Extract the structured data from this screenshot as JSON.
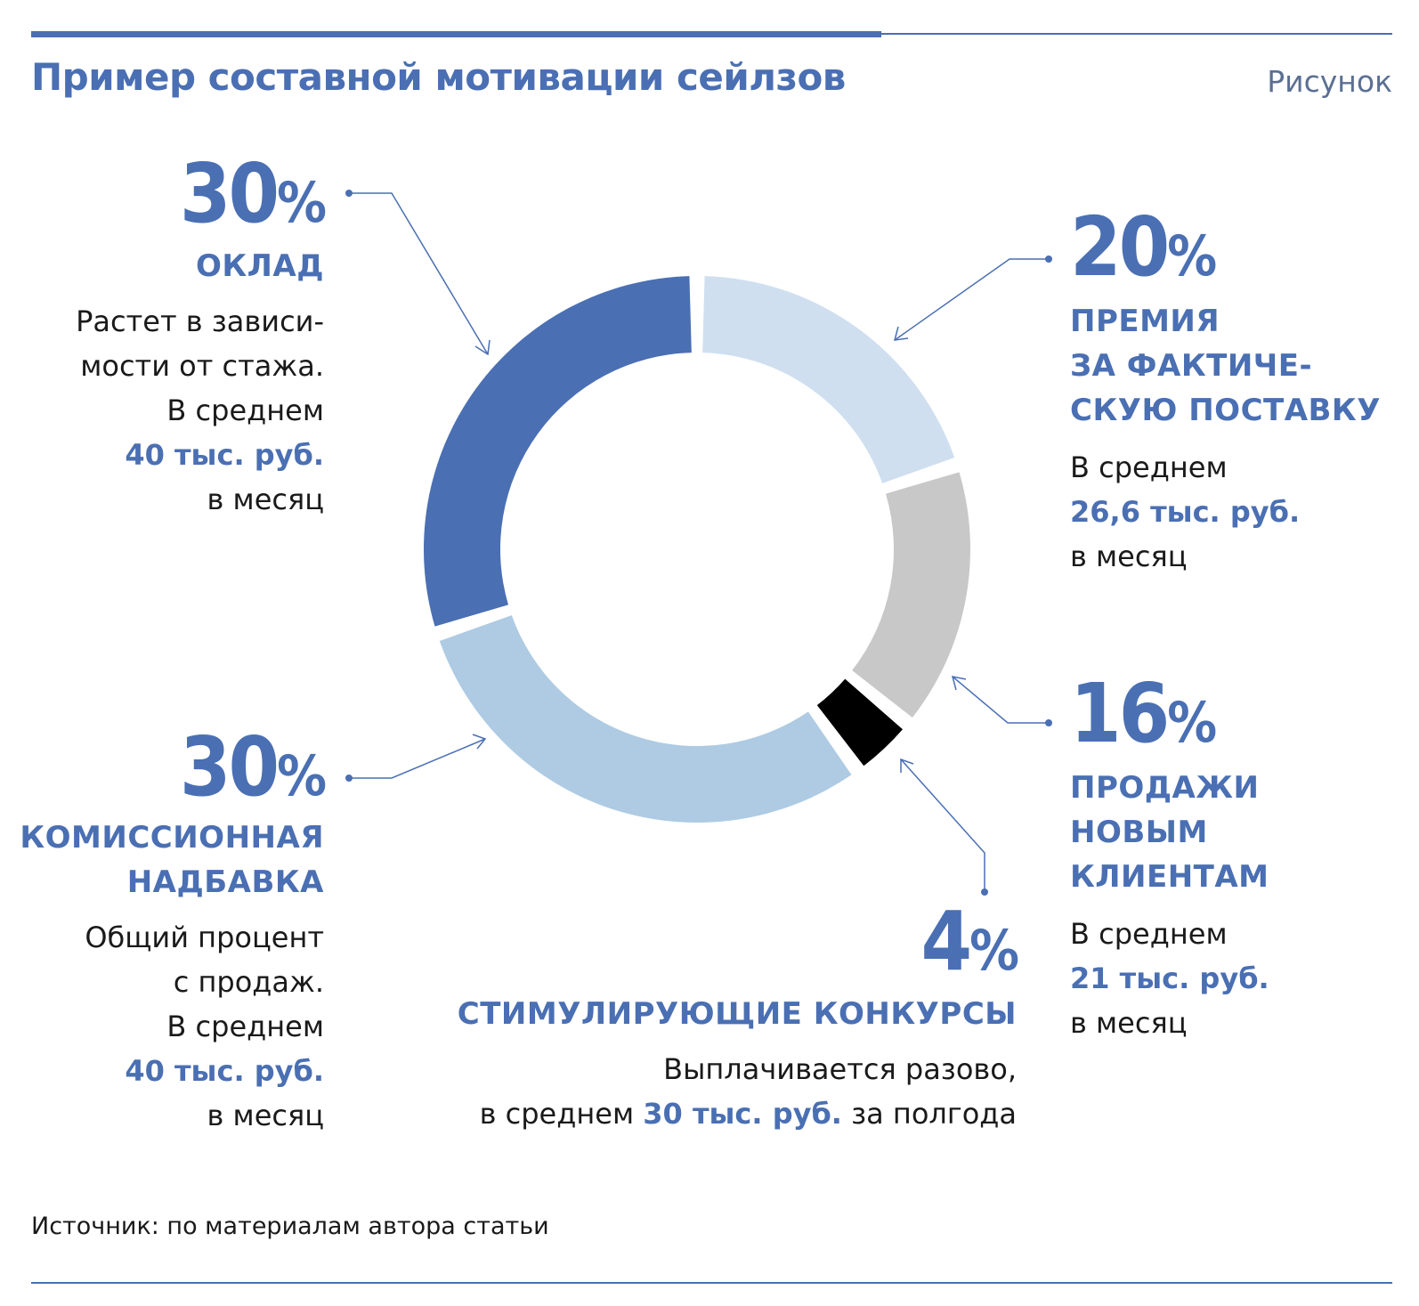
{
  "header": {
    "title": "Пример составной мотивации сейлзов",
    "figure_label": "Рисунок"
  },
  "footer": {
    "source": "Источник: по материалам автора статьи"
  },
  "chart_data": {
    "type": "pie",
    "style": "donut",
    "title": "Пример составной мотивации сейлзов",
    "slices": [
      {
        "label": "ПРЕМИЯ ЗА ФАКТИЧЕСКУЮ ПОСТАВКУ",
        "value": 20,
        "color": "#cfdff0"
      },
      {
        "label": "ПРОДАЖИ НОВЫМ КЛИЕНТАМ",
        "value": 16,
        "color": "#c8c8c8"
      },
      {
        "label": "СТИМУЛИРУЮЩИЕ КОНКУРСЫ",
        "value": 4,
        "color": "#000000"
      },
      {
        "label": "КОМИССИОННАЯ НАДБАВКА",
        "value": 30,
        "color": "#aecbe3"
      },
      {
        "label": "ОКЛАД",
        "value": 30,
        "color": "#4a6fb3"
      }
    ]
  },
  "annotations": {
    "salary": {
      "percent": "30",
      "sign": "%",
      "heading": [
        "ОКЛАД"
      ],
      "lines": [
        "Растет в зависи-",
        "мости от стажа.",
        "В среднем"
      ],
      "amount": "40 тыс. руб.",
      "tail": "в месяц"
    },
    "bonus": {
      "percent": "20",
      "sign": "%",
      "heading": [
        "ПРЕМИЯ",
        "ЗА ФАКТИЧЕ-",
        "СКУЮ ПОСТАВКУ"
      ],
      "lines": [
        "В среднем"
      ],
      "amount": "26,6 тыс. руб.",
      "tail": "в месяц"
    },
    "new_clients": {
      "percent": "16",
      "sign": "%",
      "heading": [
        "ПРОДАЖИ",
        "НОВЫМ",
        "КЛИЕНТАМ"
      ],
      "lines": [
        "В среднем"
      ],
      "amount": "21 тыс. руб.",
      "tail": "в месяц"
    },
    "commission": {
      "percent": "30",
      "sign": "%",
      "heading": [
        "КОМИССИОННАЯ",
        "НАДБАВКА"
      ],
      "lines": [
        "Общий процент",
        "с продаж.",
        "В среднем"
      ],
      "amount": "40 тыс. руб.",
      "tail": "в месяц"
    },
    "contests": {
      "percent": "4",
      "sign": "%",
      "heading": [
        "СТИМУЛИРУЮЩИЕ КОНКУРСЫ"
      ],
      "line1": "Выплачивается разово,",
      "line2_pre": "в среднем ",
      "amount": "30 тыс. руб.",
      "line2_post": " за полгода"
    }
  }
}
